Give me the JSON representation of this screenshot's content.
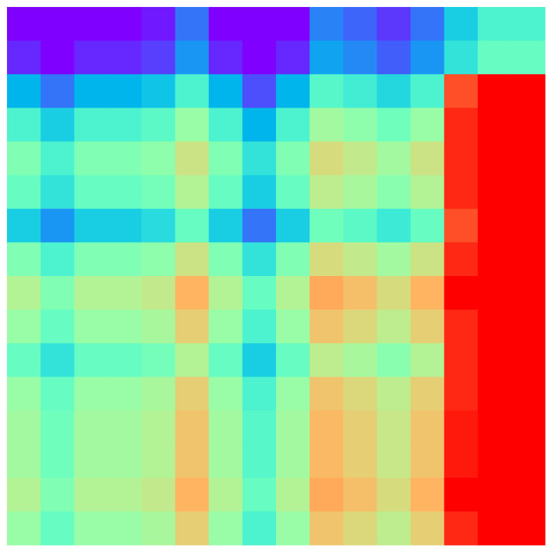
{
  "chart_data": {
    "type": "heatmap",
    "colormap": "rainbow",
    "vlim": [
      0,
      1
    ],
    "values": [
      [
        0,
        0,
        0,
        0,
        0.03,
        0.15,
        0,
        0,
        0,
        0.17,
        0.13,
        0.07,
        0.15,
        0.3,
        0.4,
        0.4
      ],
      [
        0.05,
        0,
        0.05,
        0.05,
        0.08,
        0.2,
        0.05,
        0,
        0.05,
        0.22,
        0.18,
        0.12,
        0.2,
        0.35,
        0.45,
        0.45
      ],
      [
        0.25,
        0.15,
        0.25,
        0.25,
        0.28,
        0.4,
        0.25,
        0.1,
        0.25,
        0.42,
        0.38,
        0.32,
        0.4,
        0.9,
        1,
        1
      ],
      [
        0.4,
        0.3,
        0.4,
        0.4,
        0.43,
        0.55,
        0.4,
        0.25,
        0.4,
        0.57,
        0.53,
        0.47,
        0.55,
        0.95,
        1,
        1
      ],
      [
        0.5,
        0.4,
        0.5,
        0.5,
        0.53,
        0.65,
        0.5,
        0.35,
        0.5,
        0.67,
        0.63,
        0.57,
        0.65,
        0.95,
        1,
        1
      ],
      [
        0.45,
        0.35,
        0.45,
        0.45,
        0.48,
        0.6,
        0.45,
        0.3,
        0.45,
        0.62,
        0.58,
        0.52,
        0.6,
        0.95,
        1,
        1
      ],
      [
        0.3,
        0.2,
        0.3,
        0.3,
        0.33,
        0.45,
        0.3,
        0.15,
        0.3,
        0.47,
        0.43,
        0.37,
        0.45,
        0.9,
        1,
        1
      ],
      [
        0.5,
        0.4,
        0.5,
        0.5,
        0.53,
        0.65,
        0.5,
        0.35,
        0.5,
        0.67,
        0.63,
        0.57,
        0.65,
        0.95,
        1,
        1
      ],
      [
        0.6,
        0.5,
        0.6,
        0.6,
        0.63,
        0.75,
        0.6,
        0.45,
        0.6,
        0.77,
        0.73,
        0.67,
        0.75,
        1,
        1,
        1
      ],
      [
        0.55,
        0.45,
        0.55,
        0.55,
        0.58,
        0.7,
        0.55,
        0.4,
        0.55,
        0.72,
        0.68,
        0.62,
        0.7,
        0.95,
        1,
        1
      ],
      [
        0.45,
        0.35,
        0.45,
        0.45,
        0.48,
        0.6,
        0.45,
        0.3,
        0.45,
        0.62,
        0.58,
        0.52,
        0.6,
        0.95,
        1,
        1
      ],
      [
        0.55,
        0.45,
        0.55,
        0.55,
        0.58,
        0.7,
        0.55,
        0.4,
        0.55,
        0.72,
        0.68,
        0.62,
        0.7,
        0.95,
        1,
        1
      ],
      [
        0.57,
        0.47,
        0.57,
        0.57,
        0.6,
        0.72,
        0.57,
        0.42,
        0.57,
        0.74,
        0.7,
        0.64,
        0.72,
        0.97,
        1,
        1
      ],
      [
        0.57,
        0.47,
        0.57,
        0.57,
        0.6,
        0.72,
        0.57,
        0.42,
        0.57,
        0.74,
        0.7,
        0.64,
        0.72,
        0.97,
        1,
        1
      ],
      [
        0.6,
        0.5,
        0.6,
        0.6,
        0.63,
        0.75,
        0.6,
        0.45,
        0.6,
        0.77,
        0.73,
        0.67,
        0.75,
        1,
        1,
        1
      ],
      [
        0.55,
        0.45,
        0.55,
        0.55,
        0.58,
        0.7,
        0.55,
        0.4,
        0.55,
        0.72,
        0.68,
        0.62,
        0.7,
        0.95,
        1,
        1
      ]
    ]
  }
}
